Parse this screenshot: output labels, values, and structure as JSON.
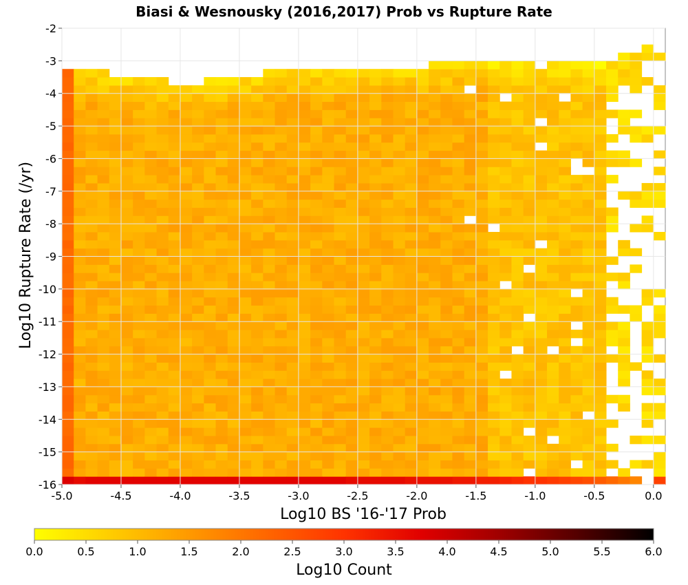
{
  "title": "Biasi & Wesnousky (2016,2017) Prob vs Rupture Rate",
  "colors": {
    "background": "#ffffff",
    "grid": "#e6e6e6",
    "axis": "#888888",
    "colormap_stops": [
      "#ffff00",
      "#ffcc00",
      "#ff9900",
      "#ff6600",
      "#ff3300",
      "#e00000",
      "#a00000",
      "#550000",
      "#000000"
    ]
  },
  "chart_data": {
    "type": "heatmap",
    "title": "Biasi & Wesnousky (2016,2017) Prob vs Rupture Rate",
    "xlabel": "Log10 BS '16-'17 Prob",
    "ylabel": "Log10 Rupture Rate (/yr)",
    "xlim": [
      -5.0,
      0.1
    ],
    "ylim": [
      -16,
      -2
    ],
    "x_ticks": [
      "-5.0",
      "-4.5",
      "-4.0",
      "-3.5",
      "-3.0",
      "-2.5",
      "-2.0",
      "-1.5",
      "-1.0",
      "-0.5",
      "0.0"
    ],
    "x_tick_values": [
      -5.0,
      -4.5,
      -4.0,
      -3.5,
      -3.0,
      -2.5,
      -2.0,
      -1.5,
      -1.0,
      -0.5,
      0.0
    ],
    "y_ticks": [
      "-2",
      "-3",
      "-4",
      "-5",
      "-6",
      "-7",
      "-8",
      "-9",
      "-10",
      "-11",
      "-12",
      "-13",
      "-14",
      "-15",
      "-16"
    ],
    "y_tick_values": [
      -2,
      -3,
      -4,
      -5,
      -6,
      -7,
      -8,
      -9,
      -10,
      -11,
      -12,
      -13,
      -14,
      -15,
      -16
    ],
    "bin_width_x": 0.1,
    "bin_width_y": 0.25,
    "grid": true,
    "summary": {
      "bottom_row_y": -16.0,
      "bottom_row_log10_count": [
        3.8,
        3.6,
        3.7,
        3.7,
        3.7,
        3.7,
        3.7,
        3.7,
        3.7,
        3.7,
        3.7,
        3.7,
        3.7,
        3.7,
        3.7,
        3.7,
        3.7,
        3.7,
        3.7,
        3.7,
        3.7,
        3.7,
        3.7,
        3.7,
        3.6,
        3.6,
        3.6,
        3.6,
        3.6,
        3.5,
        3.5,
        3.5,
        3.5,
        3.4,
        3.4,
        3.3,
        3.3,
        3.2,
        3.1,
        3.0,
        3.0,
        2.9,
        2.8,
        2.7,
        2.6,
        2.4,
        2.2,
        2.0,
        1.8,
        0,
        2.8
      ],
      "left_column_x": -5.0,
      "left_column_log10_count": 2.2,
      "typical_interior_log10_count": 1.2,
      "top_edge_y_by_x": {
        "-5.0": -3.3,
        "-4.0": -3.8,
        "-3.0": -3.3,
        "-2.0": -3.3,
        "-1.5": -3.0,
        "-1.0": -3.0,
        "-0.5": -3.2,
        "0.0": -2.5
      }
    },
    "colorbar": {
      "label": "Log10 Count",
      "range": [
        0.0,
        6.0
      ],
      "ticks": [
        "0.0",
        "0.5",
        "1.0",
        "1.5",
        "2.0",
        "2.5",
        "3.0",
        "3.5",
        "4.0",
        "4.5",
        "5.0",
        "5.5",
        "6.0"
      ],
      "tick_values": [
        0.0,
        0.5,
        1.0,
        1.5,
        2.0,
        2.5,
        3.0,
        3.5,
        4.0,
        4.5,
        5.0,
        5.5,
        6.0
      ]
    }
  }
}
